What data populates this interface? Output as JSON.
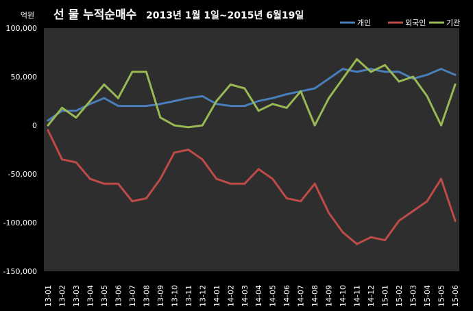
{
  "chart_data": {
    "type": "line",
    "title": "선 물 누적순매수",
    "subtitle": "2013년 1월 1일~2015년 6월19일",
    "ylabel": "억원",
    "xlabel": "",
    "ylim": [
      -150000,
      100000
    ],
    "yticks": [
      100000,
      50000,
      0,
      -50000,
      -100000,
      -150000
    ],
    "ytick_labels": [
      "100,000",
      "50,000",
      "0",
      "-50,000",
      "-100,000",
      "-150,000"
    ],
    "grid": false,
    "legend": "top-right",
    "x": [
      "13-01",
      "13-02",
      "13-03",
      "13-04",
      "13-05",
      "13-06",
      "13-07",
      "13-08",
      "13-09",
      "13-10",
      "13-11",
      "13-12",
      "14-01",
      "14-02",
      "14-03",
      "14-04",
      "14-05",
      "14-06",
      "14-07",
      "14-08",
      "14-09",
      "14-10",
      "14-11",
      "14-12",
      "15-01",
      "15-02",
      "15-03",
      "15-04",
      "15-05",
      "15-06"
    ],
    "series": [
      {
        "name": "개인",
        "color": "#4a7ebb",
        "values": [
          5000,
          15000,
          15000,
          22000,
          28000,
          20000,
          20000,
          20000,
          22000,
          25000,
          28000,
          30000,
          22000,
          20000,
          20000,
          25000,
          28000,
          32000,
          35000,
          38000,
          48000,
          58000,
          55000,
          58000,
          55000,
          55000,
          48000,
          52000,
          58000,
          52000
        ]
      },
      {
        "name": "외국인",
        "color": "#be4b48",
        "values": [
          -5000,
          -35000,
          -38000,
          -55000,
          -60000,
          -60000,
          -78000,
          -75000,
          -55000,
          -28000,
          -25000,
          -35000,
          -55000,
          -60000,
          -60000,
          -45000,
          -55000,
          -75000,
          -78000,
          -60000,
          -90000,
          -110000,
          -122000,
          -115000,
          -118000,
          -98000,
          -88000,
          -78000,
          -55000,
          -98000
        ]
      },
      {
        "name": "기관",
        "color": "#98b954",
        "values": [
          0,
          18000,
          8000,
          25000,
          42000,
          28000,
          55000,
          55000,
          8000,
          0,
          -2000,
          0,
          25000,
          42000,
          38000,
          15000,
          22000,
          18000,
          35000,
          0,
          28000,
          48000,
          68000,
          55000,
          62000,
          45000,
          50000,
          30000,
          0,
          42000
        ]
      }
    ]
  }
}
